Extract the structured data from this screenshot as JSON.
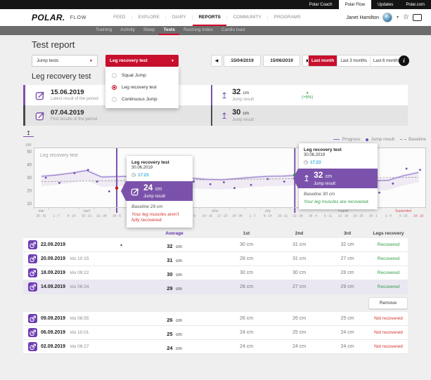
{
  "topbar": {
    "tabs": [
      {
        "label": "Polar Coach",
        "active": false
      },
      {
        "label": "Polar Flow",
        "active": true
      },
      {
        "label": "Updates",
        "active": false
      },
      {
        "label": "Polar.com",
        "active": false
      }
    ]
  },
  "header": {
    "logo": "POLAR.",
    "brand": "FLOW",
    "nav": [
      {
        "label": "FEED",
        "active": false
      },
      {
        "label": "EXPLORE",
        "active": false
      },
      {
        "label": "DIARY",
        "active": false
      },
      {
        "label": "REPORTS",
        "active": true
      },
      {
        "label": "COMMUNITY",
        "active": false
      },
      {
        "label": "PROGRAMS",
        "active": false
      }
    ],
    "user_name": "Janet Hamilton"
  },
  "subnav": {
    "items": [
      {
        "label": "Training",
        "active": false
      },
      {
        "label": "Activity",
        "active": false
      },
      {
        "label": "Sleep",
        "active": false
      },
      {
        "label": "Tests",
        "active": true
      },
      {
        "label": "Running Index",
        "active": false
      },
      {
        "label": "Cardio load",
        "active": false
      }
    ]
  },
  "page": {
    "title": "Test report",
    "section_title": "Leg recovery test"
  },
  "filters": {
    "category_select": "Jump tests",
    "test_select": "Leg recovery test",
    "menu": [
      {
        "label": "Squat Jump",
        "selected": false
      },
      {
        "label": "Leg recovery test",
        "selected": true
      },
      {
        "label": "Continuous Jump",
        "selected": false
      }
    ]
  },
  "date_controls": {
    "start_date": "15/04/2019",
    "end_date": "15/06/2019",
    "presets": [
      {
        "label": "Last month",
        "active": true
      },
      {
        "label": "Last 3 months",
        "active": false
      },
      {
        "label": "Last 6 months",
        "active": false
      }
    ],
    "info_label": "i"
  },
  "summary": {
    "rows": [
      {
        "date": "15.06.2019",
        "caption": "Latest result of the period",
        "value": "32",
        "unit": "cm",
        "label": "Jump result",
        "delta": "(+6%)"
      },
      {
        "date": "07.04.2019",
        "caption": "First results of the period",
        "value": "30",
        "unit": "cm",
        "label": "Jump result"
      }
    ]
  },
  "chart_data": {
    "type": "line",
    "title": "Leg recovery test",
    "ylabel": "cm",
    "ylim": [
      5,
      55
    ],
    "yticks": [
      10,
      20,
      30,
      40,
      50
    ],
    "legend": [
      "Progress",
      "Jump result",
      "Baseline"
    ],
    "legend_position": "top-right",
    "week_labels": [
      "25 - 31",
      "1 - 7",
      "8 - 14",
      "15 - 21",
      "22 - 28",
      "29 - 5",
      "6 - 12",
      "13 - 19",
      "20 - 26",
      "27 - 2",
      "3 - 9",
      "10 - 16",
      "17 - 23",
      "24 - 30",
      "1 - 7",
      "8 - 14",
      "15 - 21",
      "22 - 28",
      "29 - 4",
      "5 - 11",
      "12 - 18",
      "19 - 25",
      "26 - 1",
      "2 - 8",
      "9 - 15",
      "16 - 22"
    ],
    "months": [
      {
        "label": "Mar",
        "week": 0
      },
      {
        "label": "April",
        "week": 3
      },
      {
        "label": "May",
        "week": 7
      },
      {
        "label": "June",
        "week": 11.5
      },
      {
        "label": "July",
        "week": 15
      },
      {
        "label": "August",
        "week": 20
      },
      {
        "label": "September",
        "week": 24,
        "highlight": true
      }
    ],
    "progress": [
      31,
      32,
      33.5,
      35.5,
      30.5,
      30.8,
      31,
      30.8,
      30.5,
      30,
      29.5,
      28.7,
      28.4,
      29.3,
      30.3,
      31,
      31.2,
      31.8,
      31,
      30.5,
      29.8,
      28.6,
      27.6,
      28,
      31.5,
      34
    ],
    "baseline_start": 27,
    "baseline_end": 30.3,
    "points": [
      [
        0.3,
        30
      ],
      [
        1.2,
        26
      ],
      [
        2.2,
        33.5
      ],
      [
        3.1,
        36
      ],
      [
        3.7,
        27
      ],
      [
        4.5,
        19.5
      ],
      [
        6.1,
        31
      ],
      [
        7,
        28
      ],
      [
        8.2,
        25
      ],
      [
        9,
        30
      ],
      [
        10.1,
        27
      ],
      [
        11.2,
        25
      ],
      [
        12.1,
        26.5
      ],
      [
        12.8,
        22
      ],
      [
        13.9,
        24.5
      ],
      [
        15,
        29
      ],
      [
        16.1,
        27
      ],
      [
        17.9,
        31
      ],
      [
        19,
        26
      ],
      [
        20.6,
        23
      ],
      [
        21.5,
        22
      ],
      [
        22.4,
        18.5
      ],
      [
        23.3,
        25.5
      ],
      [
        24.2,
        37
      ],
      [
        25.1,
        36
      ]
    ],
    "selections": [
      {
        "week": 5,
        "value": 22,
        "color": "#cf1d1d"
      },
      {
        "week": 16.8,
        "value": 32,
        "color": "#2f9e44"
      }
    ]
  },
  "tooltips": [
    {
      "title": "Leg recovery test",
      "date": "30.06.2019",
      "time": "17:23",
      "value": "24",
      "unit": "cm",
      "value_label": "Jump result",
      "baseline": "Baseline 29 cm",
      "message": "Your leg muscles aren't fully recovered.",
      "status": "negative"
    },
    {
      "title": "Leg recovery test",
      "date": "30.06.2019",
      "time": "17:23",
      "value": "32",
      "unit": "cm",
      "value_label": "Jump result",
      "baseline": "Baseline 30 cm",
      "message": "Your leg muscles are recovered.",
      "status": "positive"
    }
  ],
  "table": {
    "unit": "cm",
    "headers": {
      "average": "Average",
      "first": "1st",
      "second": "2nd",
      "third": "3rd",
      "legs": "Legs recovery"
    },
    "groups": [
      [
        {
          "date": "22.09.2019",
          "time": "",
          "average": "32",
          "first": "30 cm",
          "second": "31 cm",
          "third": "32 cm",
          "status": "Recovered",
          "recovered": true,
          "sort": true,
          "highlighted": false
        },
        {
          "date": "20.09.2019",
          "time": "klo 10:15",
          "average": "31",
          "first": "28 cm",
          "second": "31 cm",
          "third": "27 cm",
          "status": "Recovered",
          "recovered": true,
          "sort": false,
          "highlighted": false
        },
        {
          "date": "18.09.2019",
          "time": "klo 09:22",
          "average": "30",
          "first": "30 cm",
          "second": "30 cm",
          "third": "28 cm",
          "status": "Recovered",
          "recovered": true,
          "sort": false,
          "highlighted": false
        },
        {
          "date": "14.09.2019",
          "time": "klo 08:34",
          "average": "29",
          "first": "28 cm",
          "second": "27 cm",
          "third": "29 cm",
          "status": "Recovered",
          "recovered": true,
          "sort": false,
          "highlighted": true
        }
      ],
      [
        {
          "date": "09.09.2019",
          "time": "klo 08:55",
          "average": "26",
          "first": "26 cm",
          "second": "26 cm",
          "third": "25 cm",
          "status": "Not recovered",
          "recovered": false,
          "sort": false,
          "highlighted": false
        },
        {
          "date": "06.09.2019",
          "time": "klo 10:01",
          "average": "25",
          "first": "24 cm",
          "second": "25 cm",
          "third": "24 cm",
          "status": "Not recovered",
          "recovered": false,
          "sort": false,
          "highlighted": false
        },
        {
          "date": "02.09.2019",
          "time": "klo 09:27",
          "average": "24",
          "first": "24 cm",
          "second": "24 cm",
          "third": "24 cm",
          "status": "Not recovered",
          "recovered": false,
          "sort": false,
          "highlighted": false
        }
      ]
    ],
    "remove_label": "Remove"
  }
}
